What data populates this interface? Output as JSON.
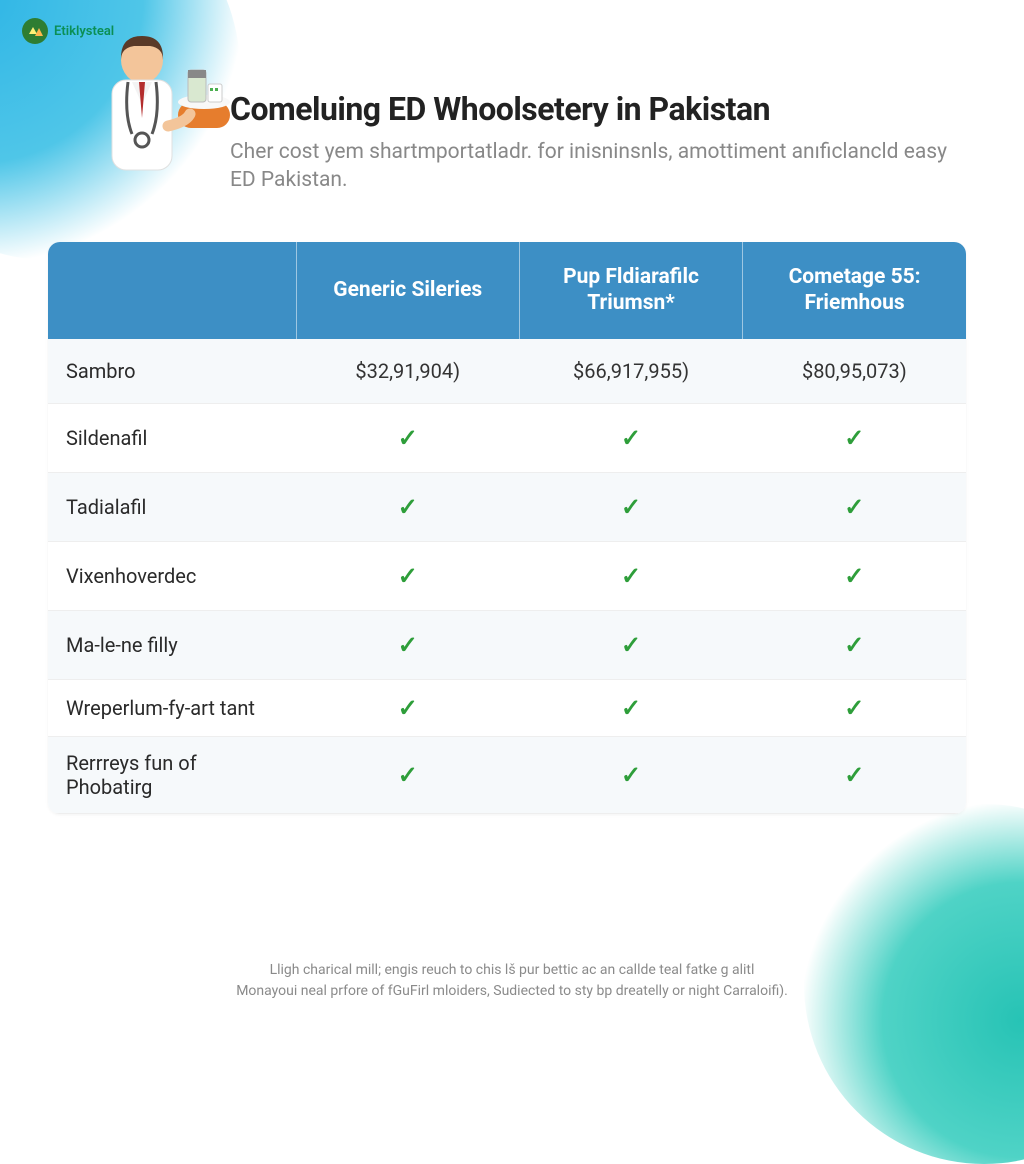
{
  "brand": {
    "name": "Etiklysteal"
  },
  "header": {
    "title": "Comeluing ED Whoolsetery in Pakistan",
    "subtitle": "Cher cost yem shartmportatladr. for inisninsnls, amottiment anıficlancld easy ED Pakistan."
  },
  "table": {
    "header_bg": "#3d8fc5",
    "header_text_color": "#ffffff",
    "row_alt_bg": "#f6f9fb",
    "check_color": "#2e9e3a",
    "columns": [
      "",
      "Generic Sileries",
      "Pup Fldiarafilc Triumsn*",
      "Cometage 55: Friemhous"
    ],
    "rows": [
      {
        "label": "Sambro",
        "cells": [
          "$32,91,904)",
          "$66,917,955)",
          "$80,95,073)"
        ]
      },
      {
        "label": "Sildenafil",
        "cells": [
          "check",
          "check",
          "check"
        ]
      },
      {
        "label": "Tadialafil",
        "cells": [
          "check",
          "check",
          "check"
        ]
      },
      {
        "label": "Vixenhoverdec",
        "cells": [
          "check",
          "check",
          "check"
        ]
      },
      {
        "label": "Ma-le-ne filly",
        "cells": [
          "check",
          "check",
          "check"
        ]
      },
      {
        "label": "Wreperlum-fy-art tant",
        "cells": [
          "check",
          "check",
          "check"
        ]
      },
      {
        "label": "Rerrreys fun of Phobatirg",
        "cells": [
          "check",
          "check",
          "check"
        ]
      }
    ]
  },
  "footer": {
    "line1": "Lligh charical mill; engis reuch to chis lš pur bettic ac an callde teal fatke g alitl",
    "line2": "Monayoui neal prfore of fGuFirl mloiders, Sudiected to sty bp dreatelly or night Carraloifi)."
  },
  "doctor": {
    "coat_color": "#ffffff",
    "tie_color": "#b32d2d",
    "skin_color": "#f3c59a",
    "hair_color": "#5a3a28",
    "bowl_color": "#e67d2d",
    "bottle_color": "#d9e8d0"
  }
}
